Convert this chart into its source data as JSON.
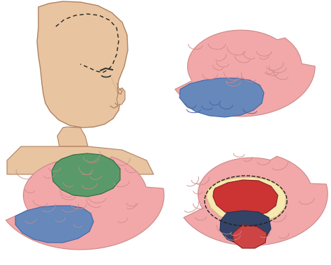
{
  "background_color": "#ffffff",
  "skin_color": "#e8c4a0",
  "skin_shadow": "#d4a882",
  "brain_pink": "#f2a8a8",
  "brain_pink_light": "#f5b8b8",
  "brain_pink_dark": "#e88888",
  "blue_region": "#6688bb",
  "blue_region_dark": "#4a6a9a",
  "green_region": "#5a9a6a",
  "green_region_dark": "#3a7a4a",
  "cream_region": "#f5e8b0",
  "red_region": "#cc3333",
  "dark_blue_region": "#334466",
  "red_region2": "#cc4444",
  "dashed_color": "#222222",
  "outline_color": "#888888",
  "brain_outline": "#cc8888"
}
